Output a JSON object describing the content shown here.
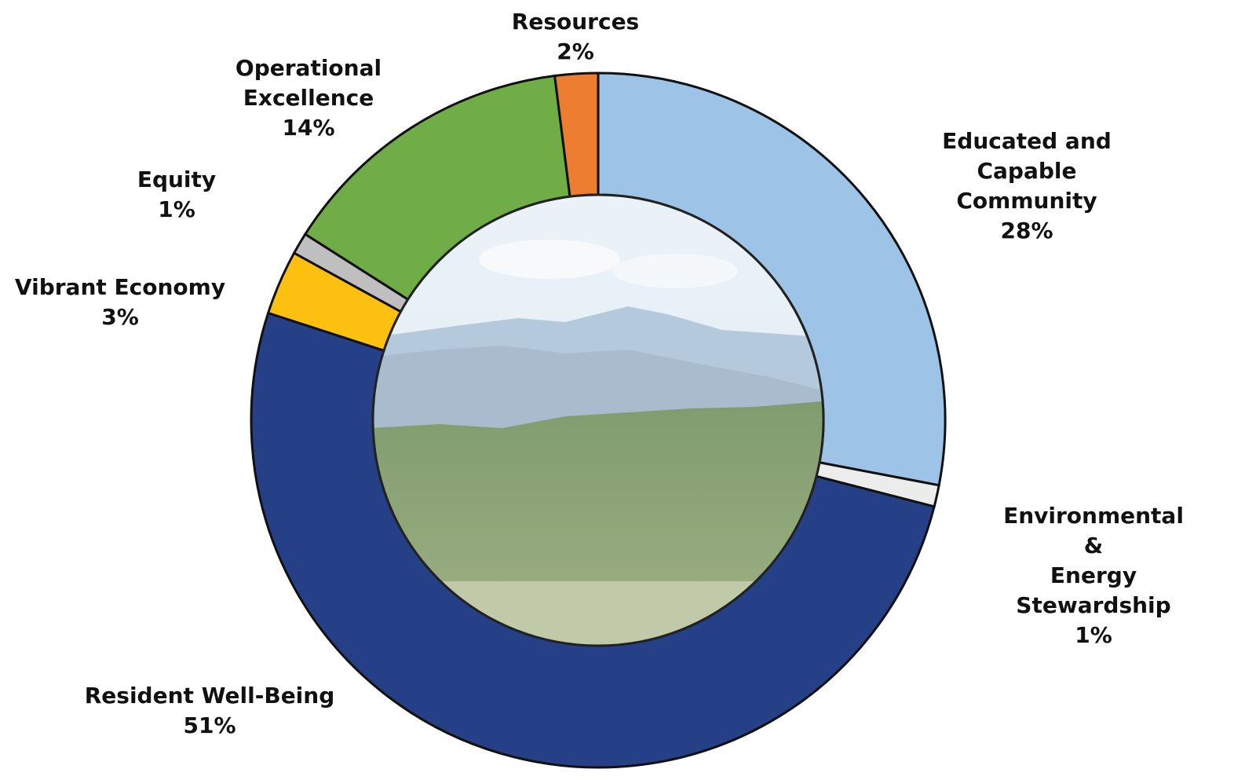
{
  "chart_data": {
    "type": "donut",
    "categories": [
      "Educated and\nCapable Community",
      "Environmental &\nEnergy Stewardship",
      "Resident Well-Being",
      "Vibrant Economy",
      "Equity",
      "Operational\nExcellence",
      "Resources"
    ],
    "values": [
      28,
      1,
      51,
      3,
      1,
      14,
      2
    ],
    "value_labels": [
      "28%",
      "1%",
      "51%",
      "3%",
      "1%",
      "14%",
      "2%"
    ],
    "colors": [
      "#9dc3e6",
      "#ececec",
      "#264087",
      "#fdc010",
      "#bfbfbf",
      "#70ad46",
      "#ed7d31"
    ]
  }
}
